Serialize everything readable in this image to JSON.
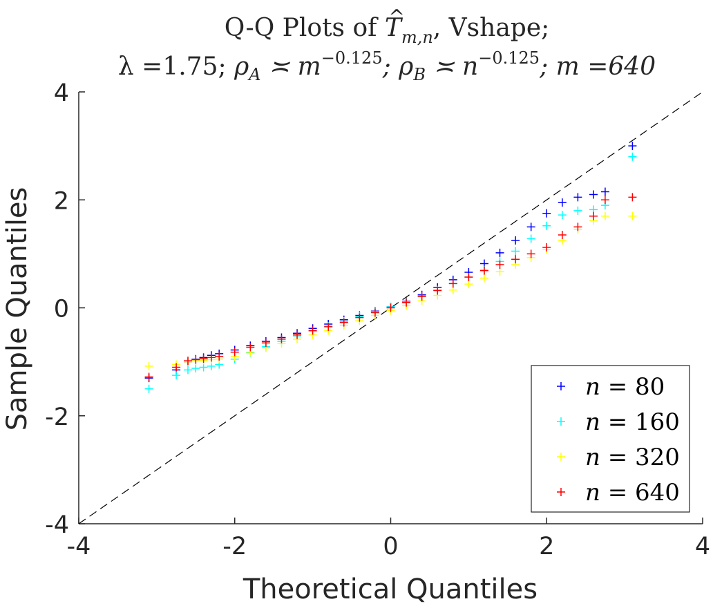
{
  "chart_data": {
    "type": "scatter",
    "title_prefix": "Q-Q Plots of ",
    "title_symbol": "T",
    "title_subscript": "m,n",
    "title_suffix": ", Vshape;",
    "subtitle": {
      "lambda": "λ =1.75;",
      "rhoA_base": "ρ",
      "rhoA_sub": "A",
      "rhoA_rel": " ≍ m",
      "rhoA_exp": "−0.125",
      "rhoB_base": "; ρ",
      "rhoB_sub": "B",
      "rhoB_rel": " ≍ n",
      "rhoB_exp": "−0.125",
      "m_part": "; m =640"
    },
    "xlabel": "Theoretical Quantiles",
    "ylabel": "Sample Quantiles",
    "xlim": [
      -4,
      4
    ],
    "ylim": [
      -4,
      4
    ],
    "xticks": [
      {
        "value": -4,
        "label": "-4"
      },
      {
        "value": -2,
        "label": "-2"
      },
      {
        "value": 0,
        "label": "0"
      },
      {
        "value": 2,
        "label": "2"
      },
      {
        "value": 4,
        "label": "4"
      }
    ],
    "yticks": [
      {
        "value": -4,
        "label": "-4"
      },
      {
        "value": -2,
        "label": "-2"
      },
      {
        "value": 0,
        "label": "0"
      },
      {
        "value": 2,
        "label": "2"
      },
      {
        "value": 4,
        "label": "4"
      }
    ],
    "reference_line": {
      "x": [
        -4,
        4
      ],
      "y": [
        -4,
        4
      ],
      "color": "#000000",
      "style": "dashed"
    },
    "legend_position": "bottom-right",
    "series": [
      {
        "name": "n = 80",
        "label_var": "n",
        "label_value": "= 80",
        "color": "#0000ff",
        "x": [
          -3.1,
          -2.75,
          -2.6,
          -2.5,
          -2.4,
          -2.3,
          -2.2,
          -2.0,
          -1.8,
          -1.6,
          -1.4,
          -1.2,
          -1.0,
          -0.8,
          -0.6,
          -0.4,
          -0.2,
          0.0,
          0.2,
          0.4,
          0.6,
          0.8,
          1.0,
          1.2,
          1.4,
          1.6,
          1.8,
          2.0,
          2.2,
          2.4,
          2.6,
          2.75,
          3.1
        ],
        "y": [
          -1.3,
          -1.15,
          -1.0,
          -0.95,
          -0.92,
          -0.88,
          -0.85,
          -0.78,
          -0.7,
          -0.62,
          -0.55,
          -0.47,
          -0.38,
          -0.3,
          -0.22,
          -0.14,
          -0.06,
          0.02,
          0.12,
          0.24,
          0.38,
          0.52,
          0.66,
          0.82,
          1.02,
          1.25,
          1.5,
          1.75,
          1.95,
          2.05,
          2.1,
          2.15,
          3.0
        ]
      },
      {
        "name": "n = 160",
        "label_var": "n",
        "label_value": "= 160",
        "color": "#00ffff",
        "x": [
          -3.1,
          -2.75,
          -2.6,
          -2.5,
          -2.4,
          -2.3,
          -2.2,
          -2.0,
          -1.8,
          -1.6,
          -1.4,
          -1.2,
          -1.0,
          -0.8,
          -0.6,
          -0.4,
          -0.2,
          0.0,
          0.2,
          0.4,
          0.6,
          0.8,
          1.0,
          1.2,
          1.4,
          1.6,
          1.8,
          2.0,
          2.2,
          2.4,
          2.6,
          2.75,
          3.1
        ],
        "y": [
          -1.5,
          -1.25,
          -1.15,
          -1.12,
          -1.1,
          -1.08,
          -1.05,
          -0.95,
          -0.83,
          -0.72,
          -0.62,
          -0.52,
          -0.43,
          -0.34,
          -0.25,
          -0.16,
          -0.07,
          0.02,
          0.11,
          0.21,
          0.33,
          0.45,
          0.57,
          0.7,
          0.86,
          1.05,
          1.28,
          1.52,
          1.72,
          1.8,
          1.82,
          1.9,
          2.8
        ]
      },
      {
        "name": "n = 320",
        "label_var": "n",
        "label_value": "= 320",
        "color": "#ffff00",
        "x": [
          -3.1,
          -2.75,
          -2.6,
          -2.5,
          -2.4,
          -2.3,
          -2.2,
          -2.0,
          -1.8,
          -1.6,
          -1.4,
          -1.2,
          -1.0,
          -0.8,
          -0.6,
          -0.4,
          -0.2,
          0.0,
          0.2,
          0.4,
          0.6,
          0.8,
          1.0,
          1.2,
          1.4,
          1.6,
          1.8,
          2.0,
          2.2,
          2.4,
          2.6,
          2.75,
          3.1
        ],
        "y": [
          -1.08,
          -1.05,
          -1.0,
          -0.98,
          -0.97,
          -0.96,
          -0.95,
          -0.9,
          -0.82,
          -0.74,
          -0.66,
          -0.58,
          -0.5,
          -0.42,
          -0.33,
          -0.24,
          -0.14,
          -0.05,
          0.04,
          0.13,
          0.23,
          0.33,
          0.44,
          0.55,
          0.67,
          0.8,
          0.93,
          1.08,
          1.25,
          1.45,
          1.62,
          1.7,
          1.7
        ]
      },
      {
        "name": "n = 640",
        "label_var": "n",
        "label_value": "= 640",
        "color": "#ff0000",
        "x": [
          -3.1,
          -2.75,
          -2.6,
          -2.5,
          -2.4,
          -2.3,
          -2.2,
          -2.0,
          -1.8,
          -1.6,
          -1.4,
          -1.2,
          -1.0,
          -0.8,
          -0.6,
          -0.4,
          -0.2,
          0.0,
          0.2,
          0.4,
          0.6,
          0.8,
          1.0,
          1.2,
          1.4,
          1.6,
          1.8,
          2.0,
          2.2,
          2.4,
          2.6,
          2.75,
          3.1
        ],
        "y": [
          -1.28,
          -1.1,
          -0.98,
          -0.96,
          -0.94,
          -0.92,
          -0.9,
          -0.82,
          -0.73,
          -0.65,
          -0.58,
          -0.5,
          -0.42,
          -0.35,
          -0.27,
          -0.18,
          -0.09,
          0.0,
          0.1,
          0.21,
          0.32,
          0.45,
          0.57,
          0.69,
          0.8,
          0.9,
          1.0,
          1.12,
          1.35,
          1.5,
          1.7,
          2.0,
          2.05
        ]
      }
    ]
  }
}
